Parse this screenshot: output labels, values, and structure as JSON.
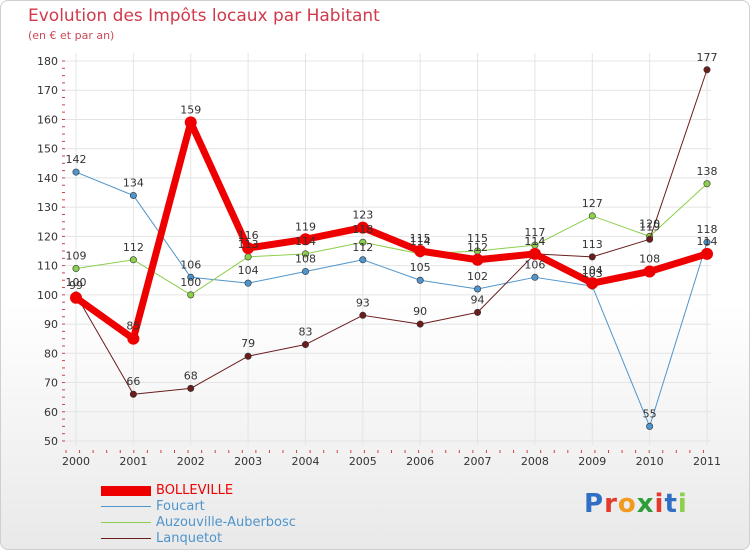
{
  "chart_data": {
    "type": "line",
    "title": "Evolution des Impôts locaux par Habitant",
    "subtitle": "(en € et par an)",
    "xlabel": "",
    "ylabel": "",
    "ylim": [
      50,
      180
    ],
    "yticks": [
      50,
      60,
      70,
      80,
      90,
      100,
      110,
      120,
      130,
      140,
      150,
      160,
      170,
      180
    ],
    "categories": [
      "2000",
      "2001",
      "2002",
      "2003",
      "2004",
      "2005",
      "2006",
      "2007",
      "2008",
      "2009",
      "2010",
      "2011"
    ],
    "grid": true,
    "legend_position": "bottom-left",
    "series": [
      {
        "name": "Foucart",
        "color": "#4f95cc",
        "values": [
          142,
          134,
          106,
          104,
          108,
          112,
          105,
          102,
          106,
          103,
          55,
          118
        ]
      },
      {
        "name": "Auzouville-Auberbosc",
        "color": "#8ccf4c",
        "values": [
          109,
          112,
          100,
          113,
          114,
          118,
          114,
          115,
          117,
          127,
          120,
          138
        ]
      },
      {
        "name": "Lanquetot",
        "color": "#6b1c1c",
        "values": [
          100,
          66,
          68,
          79,
          83,
          93,
          90,
          94,
          114,
          113,
          119,
          177
        ]
      },
      {
        "name": "BOLLEVILLE",
        "color": "#ee0000",
        "values": [
          99,
          85,
          159,
          116,
          119,
          123,
          115,
          112,
          114,
          104,
          108,
          114
        ]
      }
    ]
  },
  "legend": {
    "items": [
      {
        "name": "BOLLEVILLE",
        "color": "#ee0000"
      },
      {
        "name": "Foucart",
        "color": "#4f95cc"
      },
      {
        "name": "Auzouville-Auberbosc",
        "color": "#8ccf4c"
      },
      {
        "name": "Lanquetot",
        "color": "#6b1c1c"
      }
    ]
  },
  "logo": {
    "letters": [
      {
        "ch": "P",
        "color": "#2f6fc6"
      },
      {
        "ch": "r",
        "color": "#e43a2b"
      },
      {
        "ch": "o",
        "color": "#f29a1e"
      },
      {
        "ch": "x",
        "color": "#2e9e3a"
      },
      {
        "ch": "i",
        "color": "#e43a2b"
      },
      {
        "ch": "t",
        "color": "#2f6fc6"
      },
      {
        "ch": "i",
        "color": "#8ccf4c"
      }
    ]
  }
}
